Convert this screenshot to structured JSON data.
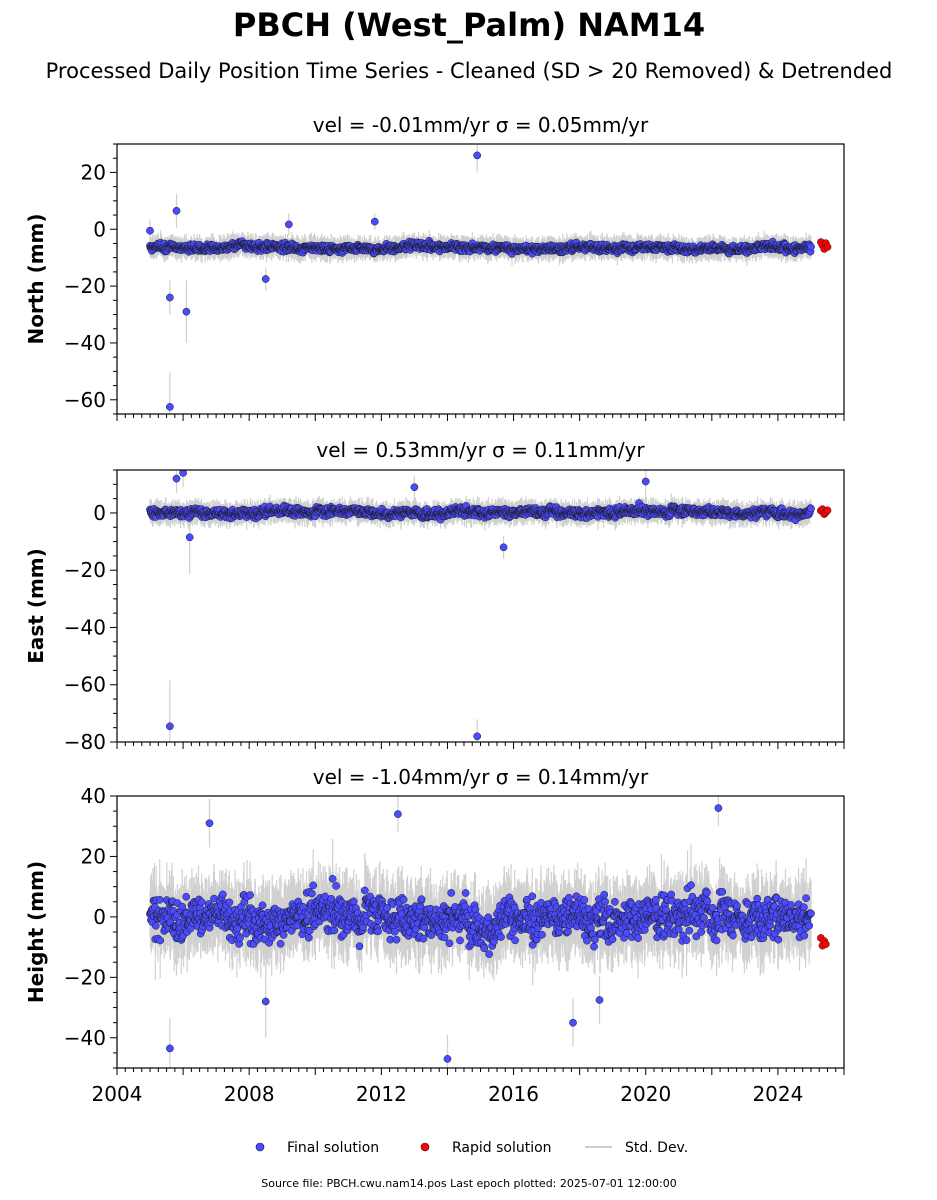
{
  "figure": {
    "title": "PBCH (West_Palm) NAM14",
    "subtitle": "Processed Daily Position Time Series - Cleaned (SD > 20 Removed) & Detrended",
    "footer": "Source file: PBCH.cwu.nam14.pos  Last epoch plotted: 2025-07-01 12:00:00"
  },
  "legend": [
    {
      "label": "Final solution",
      "kind": "marker",
      "color": "#4a4aff"
    },
    {
      "label": "Rapid solution",
      "kind": "marker",
      "color": "#ff0000"
    },
    {
      "label": "Std. Dev.",
      "kind": "line",
      "color": "#cccccc"
    }
  ],
  "colors": {
    "final": "#4a4aff",
    "rapid": "#ff0000",
    "errorbar": "#c8c8c8",
    "edge": "#1a1a1a"
  },
  "chart_data": [
    {
      "type": "scatter",
      "title": "vel = -0.01mm/yr   σ = 0.05mm/yr",
      "ylabel": "North (mm)",
      "xlim": [
        2004.0,
        2026.0
      ],
      "ylim": [
        -65,
        30
      ],
      "yticks": [
        20,
        0,
        -20,
        -40,
        -60
      ],
      "ytick_labels": [
        "20",
        "0",
        "−20",
        "−40",
        "−60"
      ],
      "final_series": {
        "start": 2005.0,
        "end": 2025.0,
        "level": -6.5,
        "spread": 1.6,
        "errbar": 3.0
      },
      "outliers": [
        {
          "x": 2005.6,
          "y": -62.5,
          "err": 12
        },
        {
          "x": 2005.6,
          "y": -24.0,
          "err": 6
        },
        {
          "x": 2006.1,
          "y": -29.0,
          "err": 11
        },
        {
          "x": 2005.8,
          "y": 6.5,
          "err": 6
        },
        {
          "x": 2014.9,
          "y": 26.0,
          "err": 6
        },
        {
          "x": 2008.5,
          "y": -17.5,
          "err": 4
        },
        {
          "x": 2009.2,
          "y": 1.7,
          "err": 4
        },
        {
          "x": 2011.8,
          "y": 2.7,
          "err": 3
        },
        {
          "x": 2005.0,
          "y": -0.5,
          "err": 4
        }
      ],
      "rapid": [
        {
          "x": 2025.3,
          "y": -4.5
        },
        {
          "x": 2025.35,
          "y": -5.6
        },
        {
          "x": 2025.4,
          "y": -6.9
        },
        {
          "x": 2025.45,
          "y": -4.9
        },
        {
          "x": 2025.5,
          "y": -6.2
        }
      ]
    },
    {
      "type": "scatter",
      "title": "vel = 0.53mm/yr   σ = 0.11mm/yr",
      "ylabel": "East (mm)",
      "xlim": [
        2004.0,
        2026.0
      ],
      "ylim": [
        -80,
        15
      ],
      "yticks": [
        0,
        -20,
        -40,
        -60,
        -80
      ],
      "ytick_labels": [
        "0",
        "−20",
        "−40",
        "−60",
        "−80"
      ],
      "final_series": {
        "start": 2005.0,
        "end": 2025.0,
        "level": 0.3,
        "spread": 1.8,
        "errbar": 3.0
      },
      "outliers": [
        {
          "x": 2005.6,
          "y": -74.5,
          "err": 16
        },
        {
          "x": 2014.9,
          "y": -78.0,
          "err": 6
        },
        {
          "x": 2006.2,
          "y": -8.5,
          "err": 13
        },
        {
          "x": 2006.0,
          "y": 14.0,
          "err": 5
        },
        {
          "x": 2013.0,
          "y": 9.0,
          "err": 4
        },
        {
          "x": 2015.7,
          "y": -12.0,
          "err": 4
        },
        {
          "x": 2020.0,
          "y": 11.0,
          "err": 5
        },
        {
          "x": 2005.8,
          "y": 12.0,
          "err": 5
        }
      ],
      "rapid": [
        {
          "x": 2025.3,
          "y": 0.8
        },
        {
          "x": 2025.35,
          "y": 1.3
        },
        {
          "x": 2025.4,
          "y": -0.4
        },
        {
          "x": 2025.45,
          "y": 0.2
        },
        {
          "x": 2025.5,
          "y": 0.9
        }
      ]
    },
    {
      "type": "scatter",
      "title": "vel = -1.04mm/yr   σ = 0.14mm/yr",
      "ylabel": "Height (mm)",
      "xlim": [
        2004.0,
        2026.0
      ],
      "ylim": [
        -50,
        40
      ],
      "yticks": [
        40,
        20,
        0,
        -20,
        -40
      ],
      "ytick_labels": [
        "40",
        "20",
        "0",
        "−20",
        "−40"
      ],
      "xticks": [
        2004,
        2008,
        2012,
        2016,
        2020,
        2024
      ],
      "xtick_labels": [
        "2004",
        "2008",
        "2012",
        "2016",
        "2020",
        "2024"
      ],
      "final_series": {
        "start": 2005.0,
        "end": 2025.0,
        "level": 0.0,
        "spread": 8.0,
        "errbar": 9.0
      },
      "outliers": [
        {
          "x": 2005.6,
          "y": -43.5,
          "err": 10
        },
        {
          "x": 2014.0,
          "y": -47.0,
          "err": 8
        },
        {
          "x": 2017.8,
          "y": -35.0,
          "err": 8
        },
        {
          "x": 2022.2,
          "y": 36.0,
          "err": 6
        },
        {
          "x": 2012.5,
          "y": 34.0,
          "err": 6
        },
        {
          "x": 2006.8,
          "y": 31.0,
          "err": 8
        },
        {
          "x": 2018.6,
          "y": -27.5,
          "err": 8
        },
        {
          "x": 2008.5,
          "y": -28.0,
          "err": 12
        }
      ],
      "rapid": [
        {
          "x": 2025.3,
          "y": -7.0
        },
        {
          "x": 2025.35,
          "y": -9.5
        },
        {
          "x": 2025.4,
          "y": -8.0
        },
        {
          "x": 2025.45,
          "y": -9.0
        }
      ]
    }
  ]
}
